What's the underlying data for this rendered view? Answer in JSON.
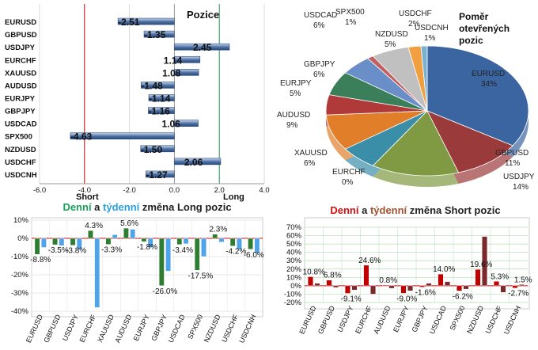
{
  "chart_data": [
    {
      "type": "bar",
      "title": "Pozice",
      "orientation": "horizontal",
      "categories": [
        "EURUSD",
        "GBPUSD",
        "USDJPY",
        "EURCHF",
        "XAUUSD",
        "AUDUSD",
        "EURJPY",
        "GBPJPY",
        "USDCAD",
        "SPX500",
        "NZDUSD",
        "USDCHF",
        "USDCNH"
      ],
      "values": [
        -2.51,
        -1.35,
        2.45,
        1.14,
        1.08,
        -1.48,
        -1.14,
        -1.16,
        1.06,
        -4.63,
        -1.5,
        2.06,
        -1.27
      ],
      "value_labels": [
        "-2.51",
        "-1.35",
        "2.45",
        "1.14",
        "1.08",
        "-1.48",
        "-1.14",
        "-1.16",
        "1.06",
        "-4.63",
        "-1.50",
        "2.06",
        "-1.27"
      ],
      "xlim": [
        -6,
        4
      ],
      "xticks": [
        "-6.0",
        "-4.0",
        "-2.0",
        "0.0",
        "2.0",
        "4.0"
      ],
      "side_labels": {
        "short": "Short",
        "long": "Long"
      },
      "colors": {
        "bar": "#4a6fa5",
        "short_line": "#c00000",
        "long_line": "#2e8b57"
      }
    },
    {
      "type": "pie",
      "title_lines": [
        "Poměr",
        "otevřených",
        "pozic"
      ],
      "labels": [
        "EURUSD",
        "GBPUSD",
        "USDJPY",
        "EURCHF",
        "XAUUSD",
        "AUDUSD",
        "EURJPY",
        "GBPJPY",
        "NZDUSD",
        "SPX500",
        "USDCAD",
        "USDCHF",
        "USDCNH"
      ],
      "values": [
        34,
        11,
        14,
        0,
        6,
        9,
        5,
        6,
        5,
        1,
        6,
        2,
        1
      ],
      "value_labels": [
        "34%",
        "11%",
        "14%",
        "0%",
        "6%",
        "9%",
        "5%",
        "6%",
        "5%",
        "1%",
        "6%",
        "2%",
        "1%"
      ],
      "colors": [
        "#3a65a0",
        "#9b3a3a",
        "#7f9a42",
        "#6a4f8f",
        "#3a8ea8",
        "#e07e2a",
        "#b03a3a",
        "#3a7f5a",
        "#6a8fc8",
        "#c06060",
        "#c0c0c0",
        "#f0a040",
        "#7ab0d0"
      ]
    },
    {
      "type": "bar",
      "title_parts": [
        {
          "text": "Denní",
          "color": "#1aa05a"
        },
        {
          "text": " a ",
          "color": "#222222"
        },
        {
          "text": "týdenní",
          "color": "#2aa0e0"
        },
        {
          "text": " změna Long pozic",
          "color": "#222222"
        }
      ],
      "categories": [
        "EURUSD",
        "GBPUSD",
        "USDJPY",
        "EURCHF",
        "XAUUSD",
        "AUDUSD",
        "EURJPY",
        "GBPJPY",
        "USDCAD",
        "SPX500",
        "NZDUSD",
        "USDCHF",
        "USDCNH"
      ],
      "series": [
        {
          "name": "Denní",
          "values": [
            -8.8,
            -3.5,
            -3.8,
            4.3,
            -3.3,
            5.6,
            -1.8,
            -26.0,
            -3.4,
            -17.5,
            2.3,
            -4.2,
            -6.0
          ]
        },
        {
          "name": "týdenní",
          "values": [
            -5.0,
            -4.0,
            -6.0,
            -38.0,
            2.0,
            5.0,
            -5.0,
            -18.0,
            -3.0,
            -10.0,
            -2.0,
            -6.0,
            -8.0
          ]
        }
      ],
      "data_labels": [
        "-8.8%",
        "-3.5%",
        "-3.8%",
        "4.3%",
        "-3.3%",
        "5.6%",
        "-1.8%",
        "-26.0%",
        "-3.4%",
        "-17.5%",
        "2.3%",
        "-4.2%",
        "-6.0%"
      ],
      "ylim": [
        -40,
        10
      ],
      "yticks": [
        "10%",
        "0%",
        "-10%",
        "-20%",
        "-30%",
        "-40%"
      ],
      "colors": {
        "daily": "#2e7d32",
        "weekly": "#4fa3e8"
      }
    },
    {
      "type": "bar",
      "title_parts": [
        {
          "text": "Denní",
          "color": "#d01010"
        },
        {
          "text": " a ",
          "color": "#222222"
        },
        {
          "text": "týdenní",
          "color": "#a0522d"
        },
        {
          "text": " změna Short pozic",
          "color": "#222222"
        }
      ],
      "categories": [
        "EURUSD",
        "GBPUSD",
        "USDJPY",
        "EURCHF",
        "AUDUSD",
        "EURJPY",
        "GBPJPY",
        "USDCAD",
        "SPX500",
        "NZDUSD",
        "USDCHF",
        "USDCNH"
      ],
      "series": [
        {
          "name": "Denní",
          "values": [
            10.8,
            6.8,
            -9.1,
            24.6,
            0.8,
            -9.0,
            -1.6,
            14.0,
            -6.2,
            19.6,
            5.3,
            -2.7
          ]
        },
        {
          "name": "týdenní",
          "values": [
            3.0,
            -2.0,
            -5.0,
            -10.0,
            -3.0,
            -6.0,
            3.0,
            5.0,
            -4.0,
            59.0,
            -8.0,
            1.5
          ]
        }
      ],
      "data_labels": [
        "10.8%",
        "6.8%",
        "-9.1%",
        "24.6%",
        "0.8%",
        "-9.0%",
        "-1.6%",
        "14.0%",
        "-6.2%",
        "19.6%",
        "5.3%",
        "-2.7%",
        "1.5%"
      ],
      "ylim": [
        -20,
        70
      ],
      "yticks": [
        "70%",
        "60%",
        "50%",
        "40%",
        "30%",
        "20%",
        "10%",
        "0%",
        "-10%",
        "-20%"
      ],
      "colors": {
        "daily": "#c00000",
        "weekly": "#7a2a2a"
      }
    }
  ]
}
